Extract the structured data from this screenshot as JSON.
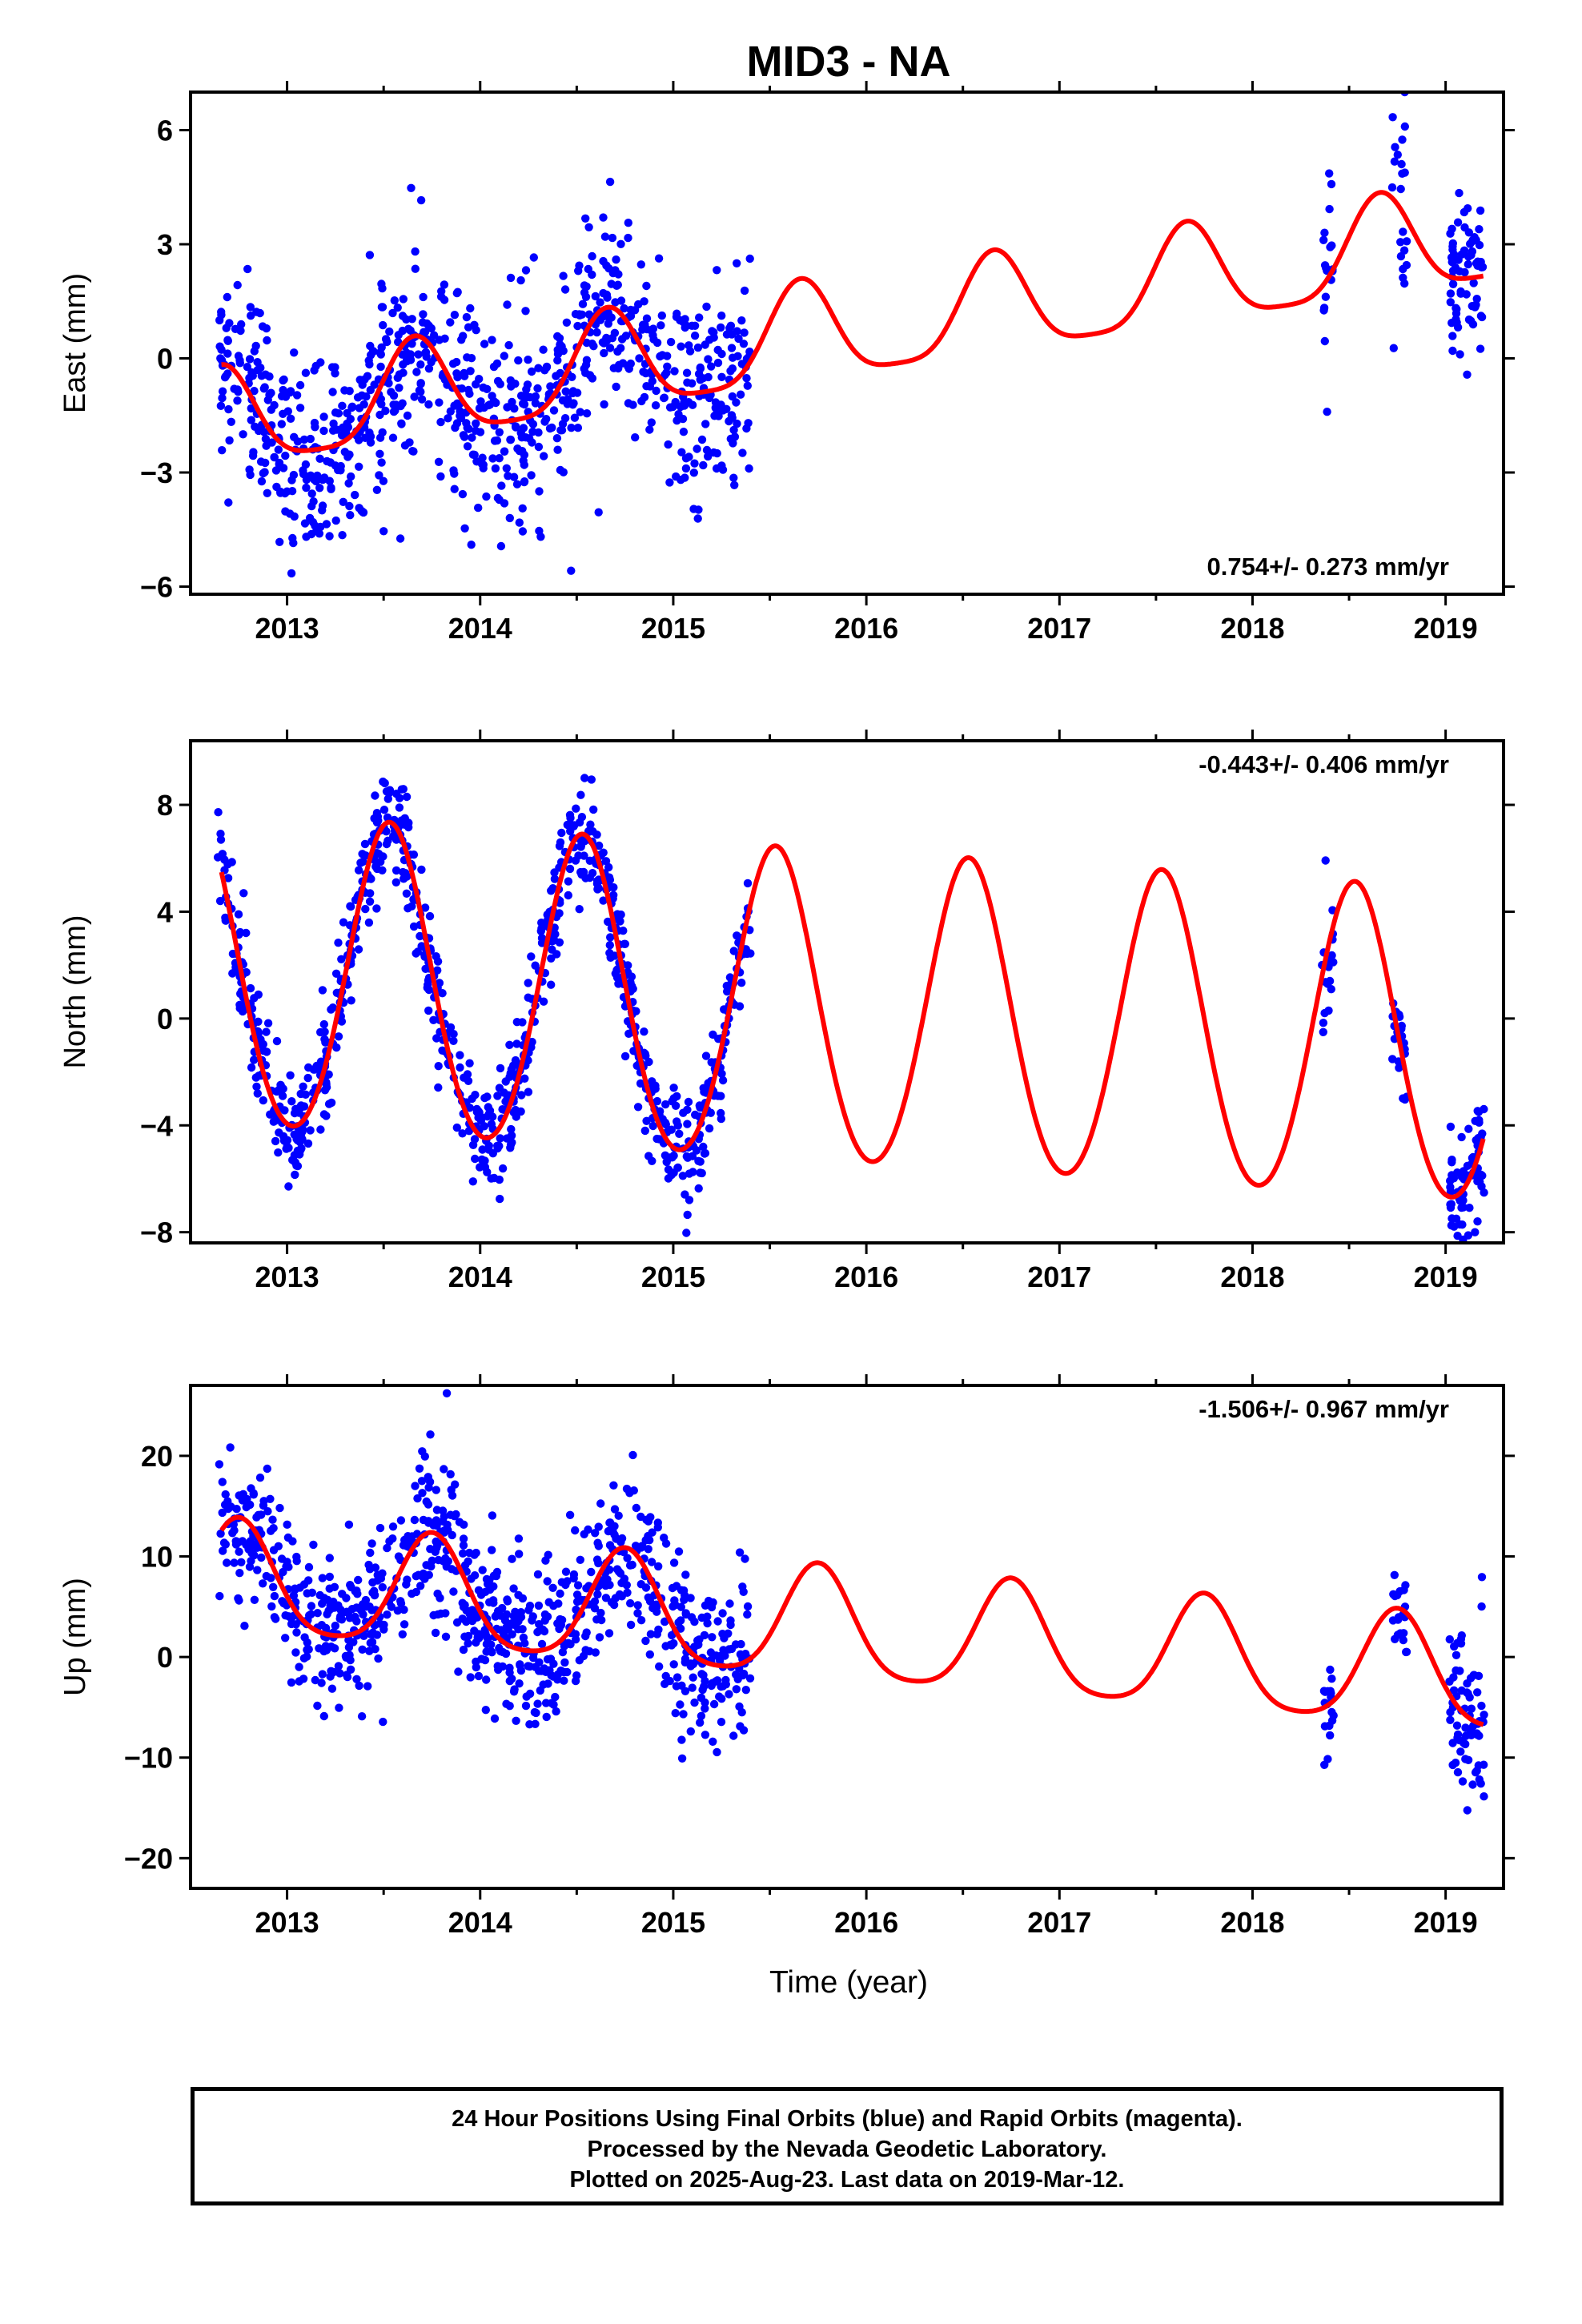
{
  "title": "MID3 - NA",
  "xlabel": "Time (year)",
  "footer": {
    "line1": "24 Hour Positions Using Final Orbits (blue) and Rapid Orbits (magenta).",
    "line2": "Processed by the Nevada Geodetic Laboratory.",
    "line3": "Plotted on 2025-Aug-23. Last data on 2019-Mar-12."
  },
  "colors": {
    "points": "#0000ff",
    "model": "#ff0000",
    "axes": "#000000"
  },
  "chart_data": [
    {
      "type": "scatter",
      "component": "East",
      "ylabel": "East (mm)",
      "xlim": [
        2012.5,
        2019.3
      ],
      "ylim": [
        -6.2,
        7.0
      ],
      "yticks": [
        -6,
        -3,
        0,
        3,
        6
      ],
      "xticks": [
        2013,
        2014,
        2015,
        2016,
        2017,
        2018,
        2019
      ],
      "rate_label": "0.754+/- 0.273 mm/yr",
      "rate_position": "bottom-right",
      "model": {
        "offset": 0.0,
        "rate": 0.754,
        "annual_amp": 1.3,
        "annual_phase_year": 2012.66,
        "semiannual_amp": 0.3
      },
      "segments": [
        {
          "start": 2012.64,
          "end": 2015.4,
          "scatter": 1.3,
          "count": 900
        },
        {
          "start": 2018.36,
          "end": 2018.42,
          "scatter": 1.3,
          "count": 18
        },
        {
          "start": 2018.72,
          "end": 2018.8,
          "scatter": 1.3,
          "count": 22
        },
        {
          "start": 2019.02,
          "end": 2019.2,
          "scatter": 1.2,
          "count": 70
        }
      ]
    },
    {
      "type": "scatter",
      "component": "North",
      "ylabel": "North (mm)",
      "xlim": [
        2012.5,
        2019.3
      ],
      "ylim": [
        -8.4,
        10.4
      ],
      "yticks": [
        -8,
        -4,
        0,
        4,
        8
      ],
      "xticks": [
        2013,
        2014,
        2015,
        2016,
        2017,
        2018,
        2019
      ],
      "rate_label": "-0.443+/- 0.406 mm/yr",
      "rate_position": "top-right",
      "model": {
        "offset": 0.5,
        "rate": -0.443,
        "annual_amp": 5.8,
        "annual_phase_year": 2012.53,
        "semiannual_amp": 0.4
      },
      "segments": [
        {
          "start": 2012.64,
          "end": 2015.4,
          "scatter": 1.0,
          "count": 900
        },
        {
          "start": 2018.36,
          "end": 2018.42,
          "scatter": 1.4,
          "count": 18
        },
        {
          "start": 2018.72,
          "end": 2018.8,
          "scatter": 1.1,
          "count": 22
        },
        {
          "start": 2019.02,
          "end": 2019.2,
          "scatter": 1.1,
          "count": 70
        }
      ]
    },
    {
      "type": "scatter",
      "component": "Up",
      "ylabel": "Up (mm)",
      "xlim": [
        2012.5,
        2019.3
      ],
      "ylim": [
        -23.0,
        27.0
      ],
      "yticks": [
        -20,
        -10,
        0,
        10,
        20
      ],
      "xticks": [
        2013,
        2014,
        2015,
        2016,
        2017,
        2018,
        2019
      ],
      "rate_label": "-1.506+/- 0.967 mm/yr",
      "rate_position": "top-right",
      "model": {
        "offset": 4.0,
        "rate": -1.506,
        "annual_amp": 5.5,
        "annual_phase_year": 2012.75,
        "semiannual_amp": 1.0
      },
      "segments": [
        {
          "start": 2012.64,
          "end": 2015.4,
          "scatter": 4.0,
          "count": 900
        },
        {
          "start": 2018.36,
          "end": 2018.42,
          "scatter": 3.5,
          "count": 18
        },
        {
          "start": 2018.72,
          "end": 2018.8,
          "scatter": 2.5,
          "count": 22
        },
        {
          "start": 2019.02,
          "end": 2019.2,
          "scatter": 4.5,
          "count": 70
        }
      ]
    }
  ]
}
